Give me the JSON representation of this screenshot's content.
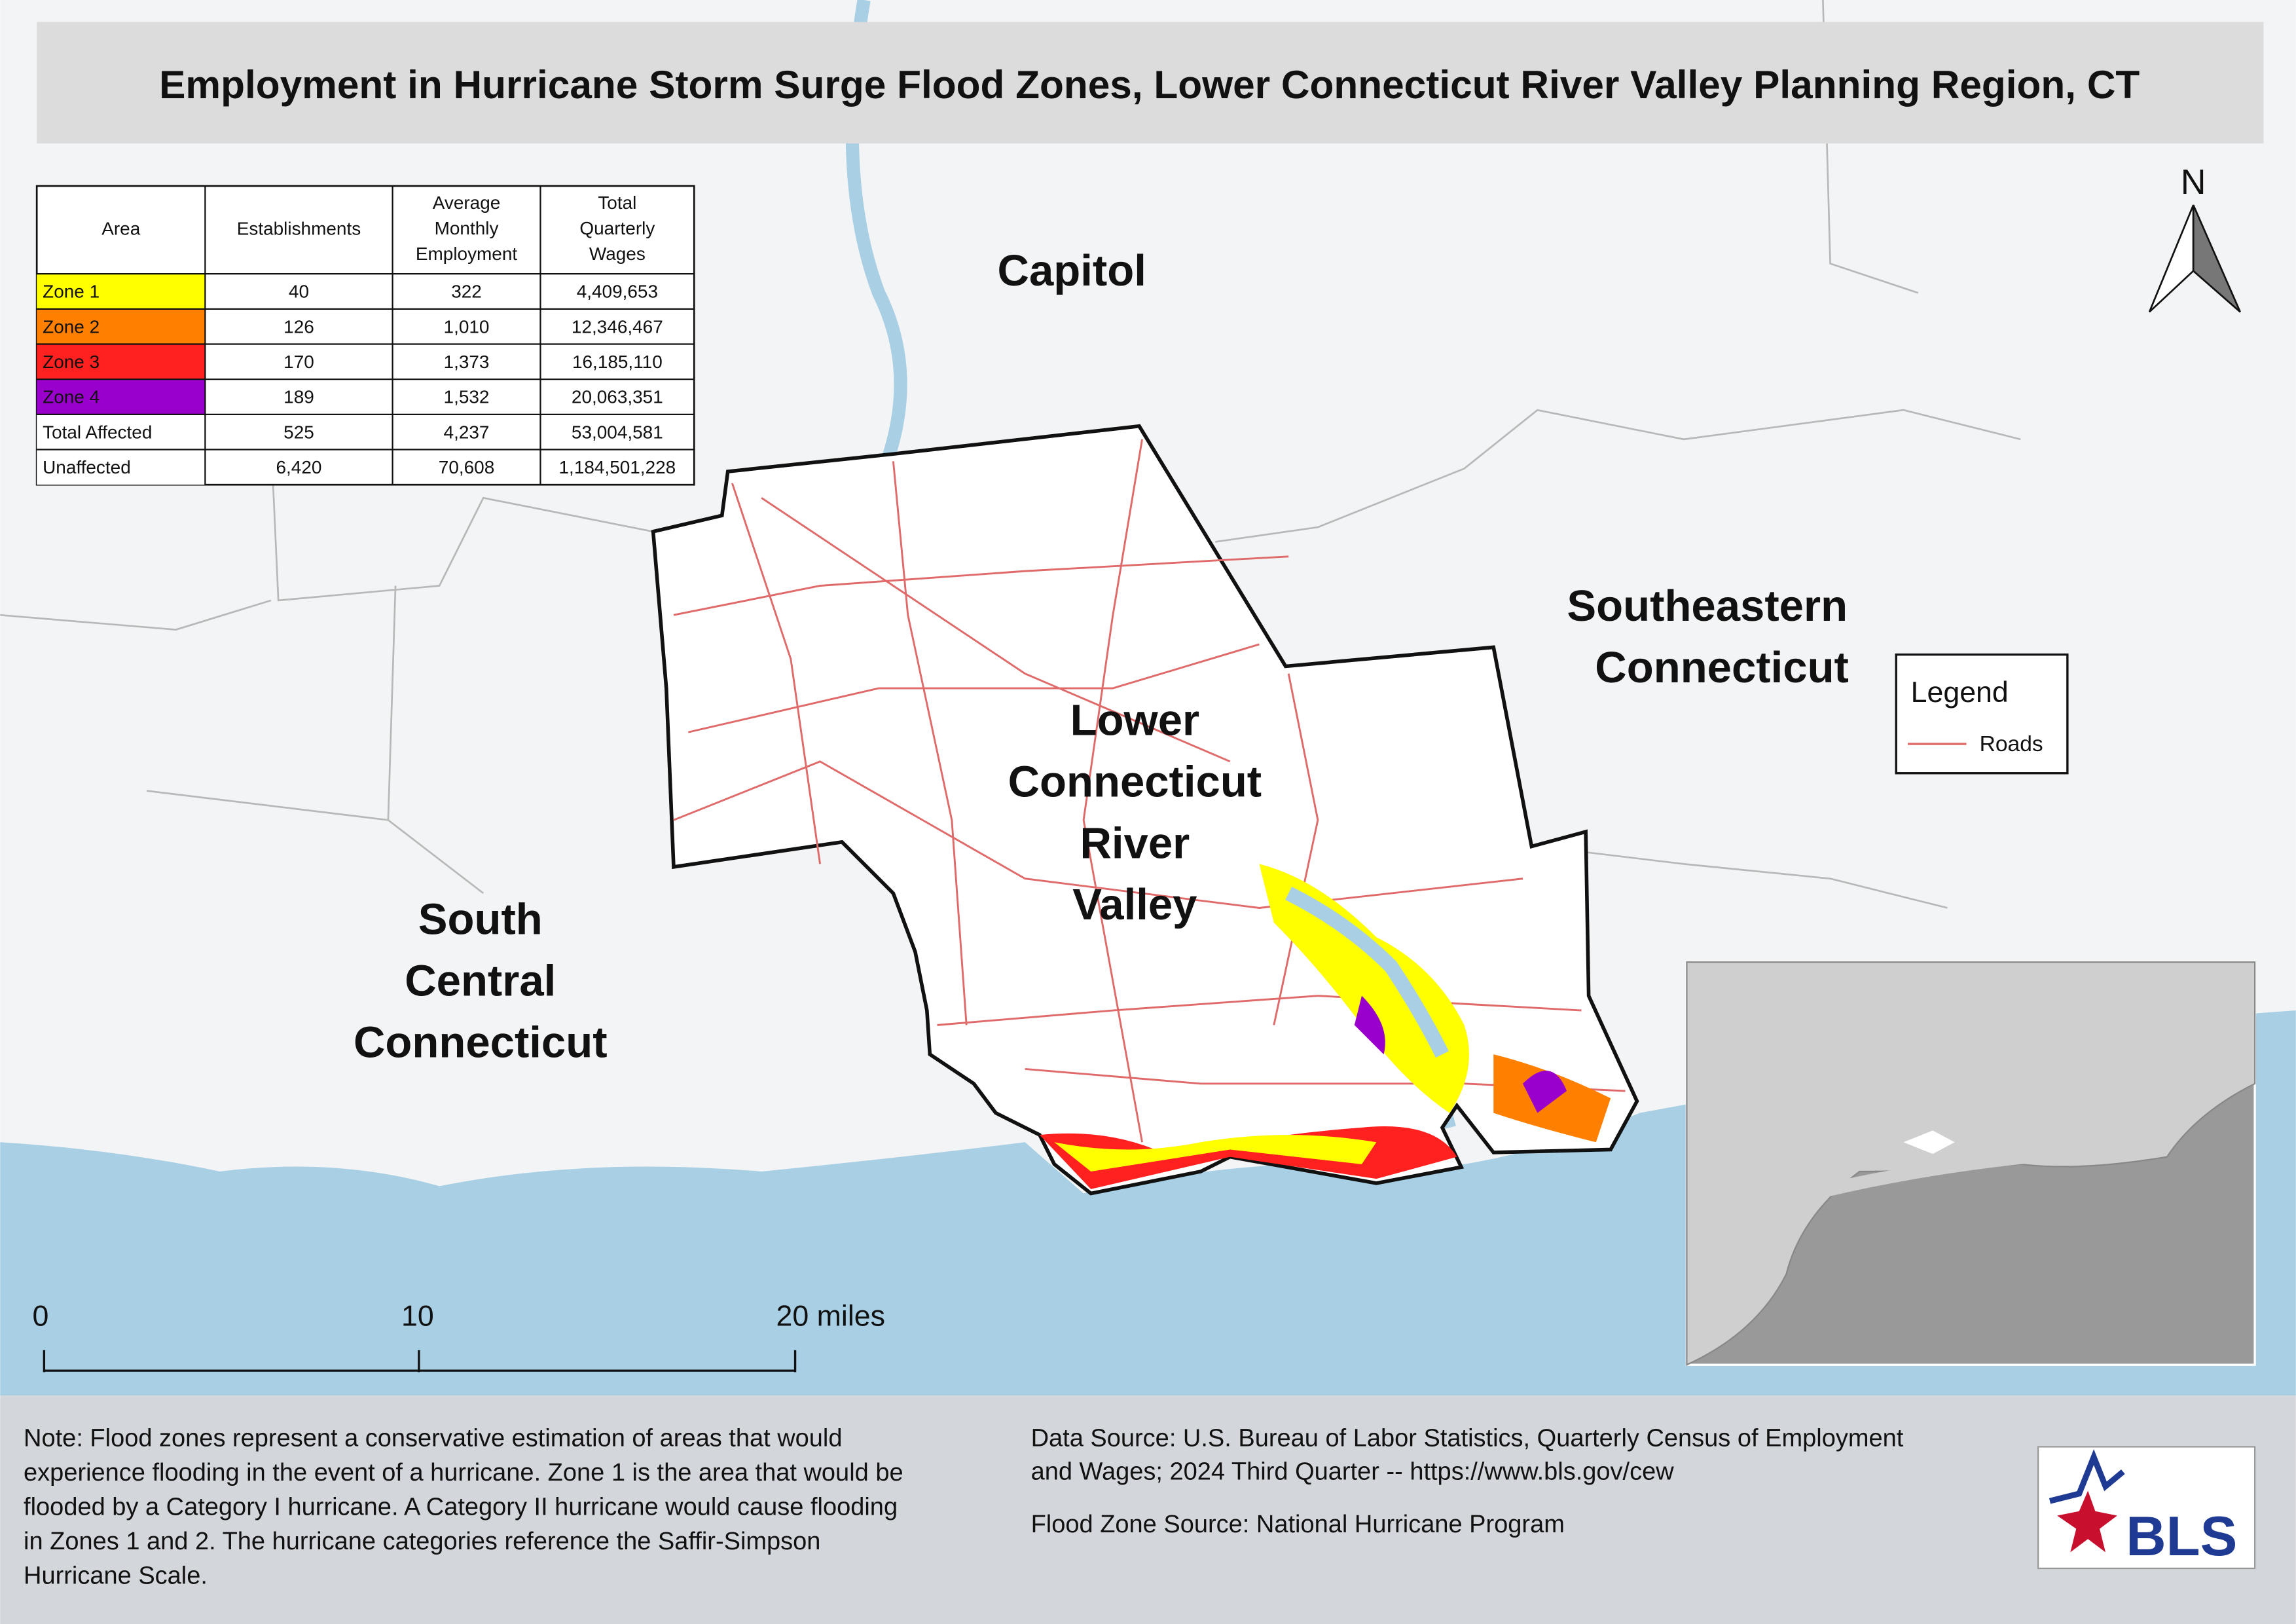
{
  "header": {
    "title": "Employment in Hurricane Storm Surge Flood Zones, Lower Connecticut River Valley Planning Region, CT"
  },
  "table": {
    "header": [
      "Area",
      "Establishments",
      "Average Monthly Employment",
      "Total Quarterly Wages"
    ],
    "rows": [
      {
        "cells": [
          "Zone 1",
          "40",
          "322",
          "4,409,653"
        ],
        "color": "#ffff00"
      },
      {
        "cells": [
          "Zone 2",
          "126",
          "1,010",
          "12,346,467"
        ],
        "color": "#ff8000"
      },
      {
        "cells": [
          "Zone 3",
          "170",
          "1,373",
          "16,185,110"
        ],
        "color": "#ff2020"
      },
      {
        "cells": [
          "Zone 4",
          "189",
          "1,532",
          "20,063,351"
        ],
        "color": "#9900cc"
      },
      {
        "cells": [
          "Total Affected",
          "525",
          "4,237",
          "53,004,581"
        ],
        "color": "#ffffff"
      },
      {
        "cells": [
          "Unaffected",
          "6,420",
          "70,608",
          "1,184,501,228"
        ],
        "color": "#ffffff"
      }
    ]
  },
  "regions": [
    {
      "lines": [
        "Capitol"
      ]
    },
    {
      "lines": [
        "Southeastern",
        "Connecticut"
      ]
    },
    {
      "lines": [
        "Lower",
        "Connecticut",
        "River",
        "Valley"
      ]
    },
    {
      "lines": [
        "South",
        "Central",
        "Connecticut"
      ]
    }
  ],
  "north": "N",
  "legend": {
    "title": "Legend",
    "items": [
      {
        "label": "Roads",
        "color": "#e06a6a"
      }
    ]
  },
  "scalebar": {
    "labels": [
      "0",
      "10",
      "20 miles"
    ]
  },
  "footer": {
    "note": [
      "Note: Flood zones represent a conservative estimation of areas that would",
      "experience flooding in the event of a hurricane. Zone 1 is the area that would be",
      "flooded by a Category I hurricane. A Category II hurricane would cause flooding",
      "in Zones 1 and 2. The hurricane categories reference the Saffir-Simpson",
      "Hurricane Scale."
    ],
    "data_source": [
      "Data Source: U.S. Bureau of Labor Statistics, Quarterly Census of Employment",
      "and Wages; 2024 Third Quarter -- https://www.bls.gov/cew"
    ],
    "flood_source": "Flood Zone Source: National Hurricane Program",
    "logo": "BLS"
  }
}
